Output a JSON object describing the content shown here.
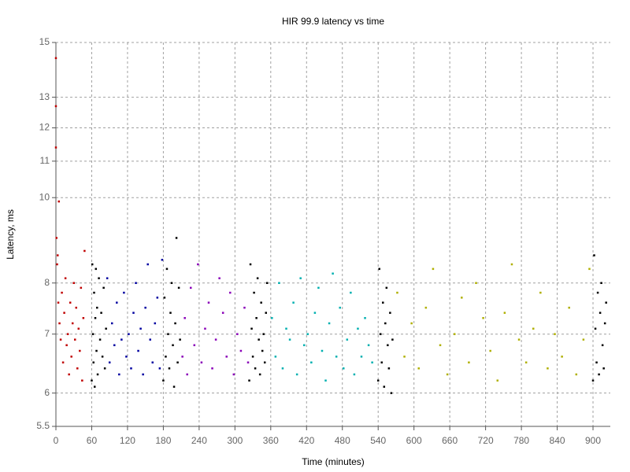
{
  "chart_data": {
    "type": "scatter",
    "title": "HIR 99.9 latency vs time",
    "x_label": "Time (minutes)",
    "y_label": "Latency, ms",
    "log_y": true,
    "grid": true,
    "xlim": [
      0,
      929
    ],
    "xticks": [
      0,
      60,
      120,
      180,
      240,
      300,
      360,
      420,
      480,
      540,
      600,
      660,
      720,
      780,
      840,
      900
    ],
    "ylim": [
      5.5,
      15
    ],
    "yticks": [
      5.5,
      6,
      7,
      8,
      10,
      11,
      12,
      13,
      15
    ],
    "series": [
      {
        "color": "#c00000",
        "x": [
          0,
          0,
          0,
          1,
          3,
          2,
          4,
          6,
          8,
          10,
          12,
          14,
          16,
          18,
          20,
          22,
          24,
          26,
          28,
          30,
          32,
          34,
          36,
          38,
          40,
          42,
          44,
          46,
          48,
          5
        ],
        "values": [
          14.4,
          12.7,
          11.4,
          9.0,
          8.6,
          8.4,
          7.6,
          7.2,
          6.9,
          7.8,
          6.5,
          7.4,
          8.1,
          6.8,
          7.0,
          6.3,
          7.6,
          6.6,
          7.2,
          8.0,
          6.9,
          7.5,
          6.4,
          7.1,
          6.7,
          7.9,
          6.2,
          7.3,
          8.7,
          9.9
        ]
      },
      {
        "color": "#000000",
        "x": [
          60,
          61,
          62,
          63,
          64,
          65,
          66,
          67,
          68,
          69,
          70,
          72,
          74,
          76,
          78,
          80,
          82,
          84
        ],
        "values": [
          6.2,
          8.4,
          7.0,
          6.5,
          7.8,
          6.1,
          7.3,
          8.3,
          6.7,
          7.5,
          6.3,
          8.1,
          6.9,
          7.4,
          6.6,
          7.9,
          6.4,
          7.1
        ]
      },
      {
        "color": "#0000a0",
        "x": [
          86,
          90,
          94,
          98,
          102,
          106,
          110,
          114,
          118,
          122,
          126,
          130,
          134,
          138,
          142,
          146,
          150,
          154,
          158,
          162,
          166,
          170,
          174,
          178
        ],
        "values": [
          8.1,
          6.5,
          7.2,
          6.8,
          7.6,
          6.3,
          6.9,
          7.8,
          6.6,
          7.0,
          6.4,
          7.4,
          8.0,
          6.7,
          7.1,
          6.3,
          7.5,
          8.4,
          6.9,
          6.5,
          7.2,
          7.7,
          6.4,
          8.5
        ]
      },
      {
        "color": "#000000",
        "x": [
          180,
          182,
          184,
          186,
          188,
          190,
          192,
          194,
          196,
          198,
          200,
          202,
          204,
          206,
          208
        ],
        "values": [
          6.2,
          7.7,
          6.6,
          8.3,
          7.0,
          6.4,
          7.4,
          8.0,
          6.8,
          6.1,
          7.2,
          9.0,
          6.5,
          7.9,
          6.9
        ]
      },
      {
        "color": "#8a00b8",
        "x": [
          212,
          216,
          220,
          226,
          232,
          238,
          244,
          250,
          256,
          262,
          268,
          274,
          280,
          286,
          292,
          298,
          304,
          310,
          316,
          322
        ],
        "values": [
          6.6,
          7.3,
          6.3,
          7.9,
          6.8,
          8.4,
          6.5,
          7.1,
          7.6,
          6.4,
          6.9,
          8.1,
          7.4,
          6.6,
          7.8,
          6.3,
          7.0,
          6.7,
          7.5,
          6.5
        ]
      },
      {
        "color": "#000000",
        "x": [
          324,
          326,
          328,
          330,
          332,
          334,
          336,
          338,
          340,
          342,
          344,
          346,
          348,
          350,
          352,
          354
        ],
        "values": [
          6.2,
          8.4,
          7.1,
          6.6,
          7.8,
          6.4,
          7.3,
          8.1,
          6.9,
          6.3,
          7.6,
          6.7,
          7.0,
          6.5,
          7.4,
          8.0
        ]
      },
      {
        "color": "#00b0b0",
        "x": [
          362,
          368,
          374,
          380,
          386,
          392,
          398,
          404,
          410,
          416,
          422,
          428,
          434,
          440,
          446,
          452,
          458,
          464,
          470,
          476,
          482,
          488,
          494,
          500,
          506,
          512,
          518,
          524,
          530
        ],
        "values": [
          7.3,
          6.6,
          8.0,
          6.4,
          7.1,
          6.9,
          7.6,
          6.3,
          8.1,
          6.8,
          7.0,
          6.5,
          7.4,
          7.9,
          6.7,
          6.2,
          7.2,
          8.2,
          6.6,
          7.5,
          6.4,
          6.9,
          7.8,
          6.3,
          7.1,
          6.6,
          7.3,
          6.8,
          6.5
        ]
      },
      {
        "color": "#000000",
        "x": [
          540,
          542,
          544,
          546,
          548,
          550,
          552,
          554,
          556,
          558,
          560,
          562,
          564
        ],
        "values": [
          6.2,
          8.3,
          7.0,
          6.5,
          7.6,
          6.1,
          7.2,
          7.9,
          6.8,
          6.4,
          7.4,
          6.0,
          6.9
        ]
      },
      {
        "color": "#b0b000",
        "x": [
          572,
          584,
          596,
          608,
          620,
          632,
          644,
          656,
          668,
          680,
          692,
          704,
          716,
          728,
          740,
          752,
          764,
          776,
          788,
          800,
          812,
          824,
          836,
          848,
          860,
          872,
          884,
          894
        ],
        "values": [
          7.8,
          6.6,
          7.2,
          6.4,
          7.5,
          8.3,
          6.8,
          6.3,
          7.0,
          7.7,
          6.5,
          8.0,
          7.3,
          6.7,
          6.2,
          7.4,
          8.4,
          6.9,
          6.5,
          7.1,
          7.8,
          6.4,
          7.0,
          6.6,
          7.5,
          6.3,
          6.9,
          8.3
        ]
      },
      {
        "color": "#000000",
        "x": [
          900,
          902,
          904,
          906,
          908,
          910,
          912,
          914,
          916,
          918,
          920,
          922
        ],
        "values": [
          6.2,
          8.6,
          7.1,
          6.5,
          7.8,
          6.3,
          7.4,
          8.0,
          6.8,
          6.4,
          7.2,
          7.6
        ]
      }
    ]
  }
}
